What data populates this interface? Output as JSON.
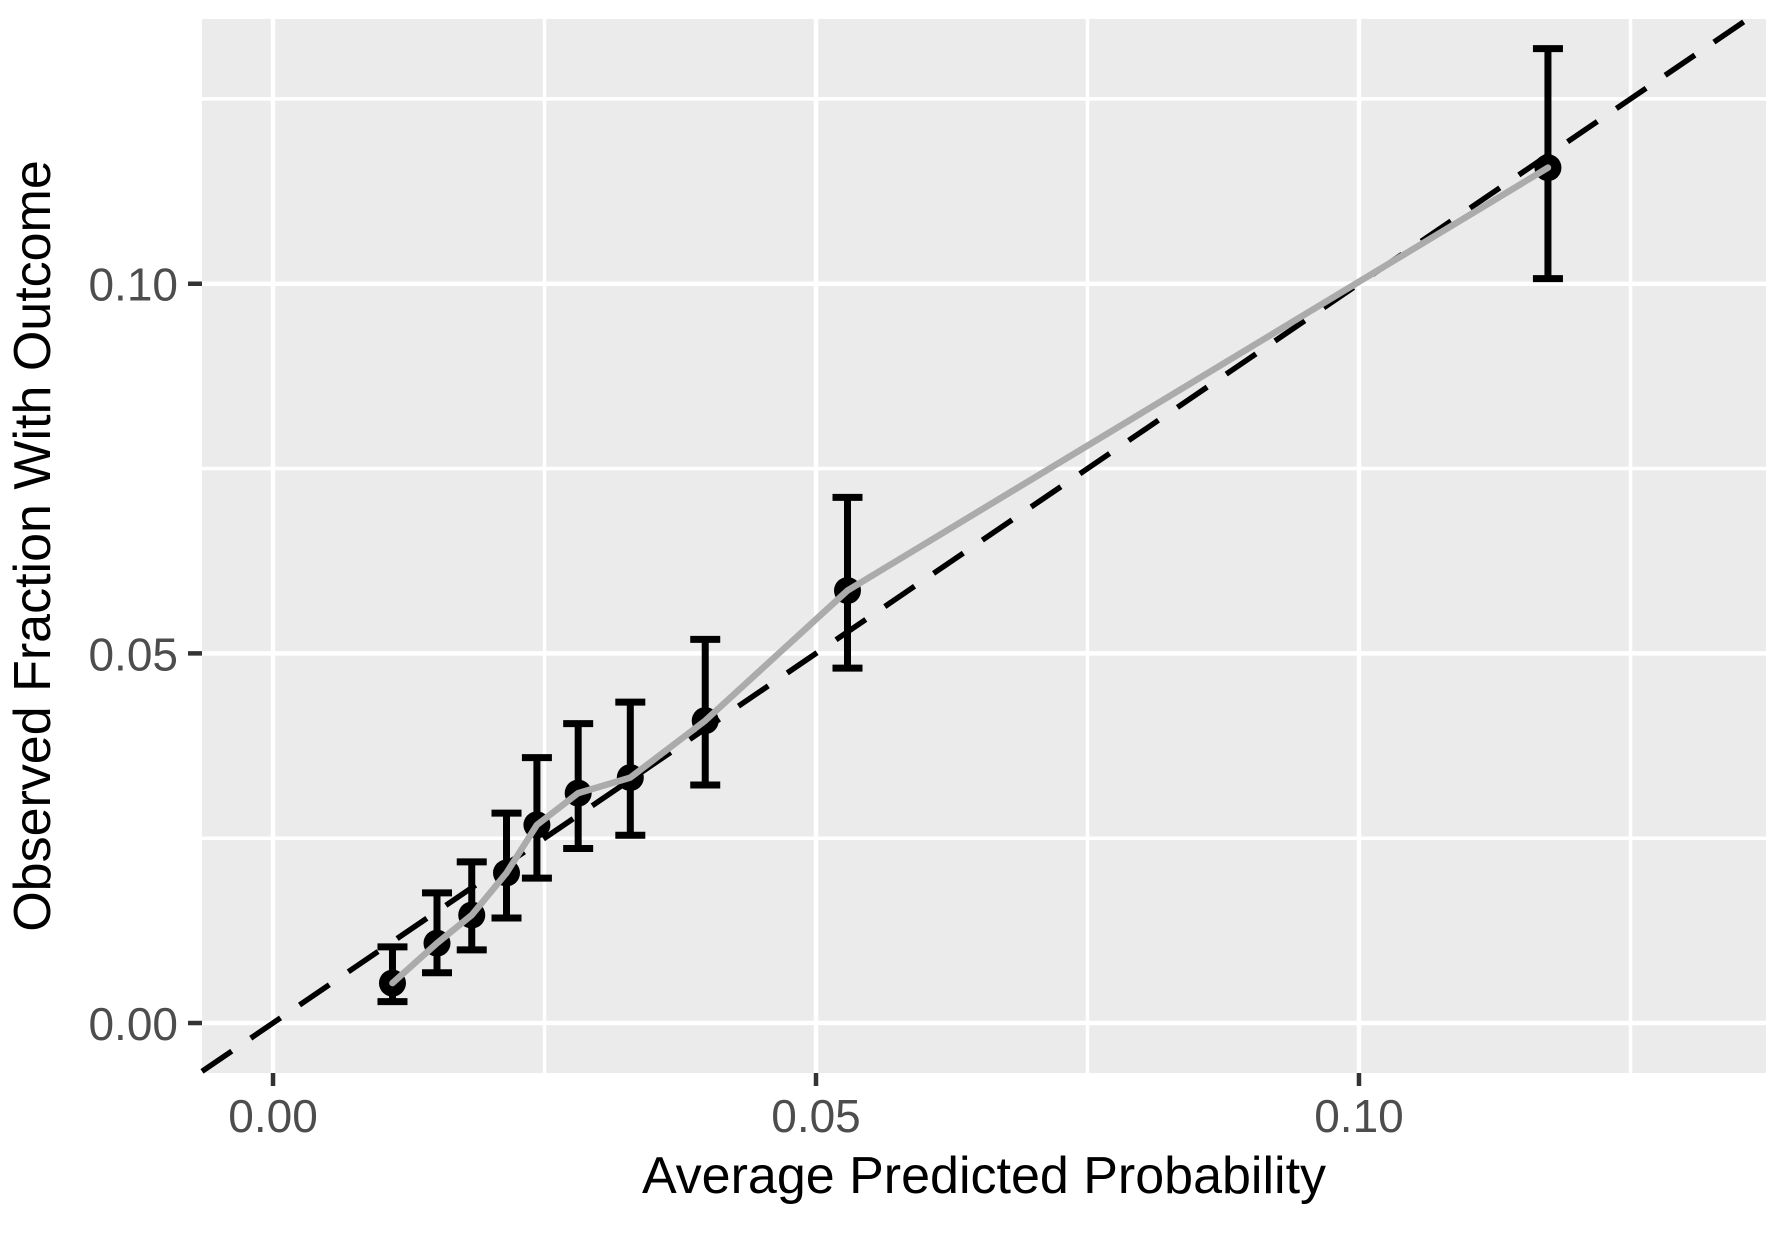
{
  "chart_data": {
    "type": "scatter",
    "title": "",
    "xlabel": "Average Predicted Probability",
    "ylabel": "Observed Fraction With Outcome",
    "legend": "none",
    "grid": "on",
    "xlim": [
      -0.00654,
      0.13748
    ],
    "ylim": [
      -0.00676,
      0.13581
    ],
    "x_axis": {
      "tick_values": [
        0.0,
        0.05,
        0.1
      ],
      "tick_labels": [
        "0.00",
        "0.05",
        "0.10"
      ],
      "minor_tick_values": [
        0.025,
        0.075,
        0.125
      ]
    },
    "y_axis": {
      "tick_values": [
        0.0,
        0.05,
        0.1
      ],
      "tick_labels": [
        "0.00",
        "0.05",
        "0.10"
      ],
      "minor_tick_values": [
        0.025,
        0.075,
        0.125
      ]
    },
    "identity_line": {
      "slope": 1,
      "intercept": 0,
      "style": "dashed",
      "color": "#000000"
    },
    "series": [
      {
        "name": "calibration-curve",
        "marker": "filled-circle",
        "line_color": "#ababab",
        "point_color": "#000000",
        "points": [
          {
            "x": 0.011,
            "y": 0.0054,
            "ci_low": 0.0029,
            "ci_high": 0.0103
          },
          {
            "x": 0.0151,
            "y": 0.0108,
            "ci_low": 0.0068,
            "ci_high": 0.0176
          },
          {
            "x": 0.0183,
            "y": 0.0146,
            "ci_low": 0.0099,
            "ci_high": 0.0218
          },
          {
            "x": 0.0215,
            "y": 0.0203,
            "ci_low": 0.0142,
            "ci_high": 0.0284
          },
          {
            "x": 0.0243,
            "y": 0.0268,
            "ci_low": 0.0196,
            "ci_high": 0.0359
          },
          {
            "x": 0.0281,
            "y": 0.0311,
            "ci_low": 0.0236,
            "ci_high": 0.0405
          },
          {
            "x": 0.0329,
            "y": 0.0332,
            "ci_low": 0.0254,
            "ci_high": 0.0434
          },
          {
            "x": 0.0398,
            "y": 0.0409,
            "ci_low": 0.0322,
            "ci_high": 0.0519
          },
          {
            "x": 0.0529,
            "y": 0.0585,
            "ci_low": 0.048,
            "ci_high": 0.0711
          },
          {
            "x": 0.1174,
            "y": 0.1157,
            "ci_low": 0.1007,
            "ci_high": 0.1318
          }
        ]
      }
    ],
    "colors": {
      "panel_background": "#ebebeb",
      "gridline": "#ffffff",
      "tick_mark": "#333333",
      "tick_label": "#4d4d4d",
      "axis_title": "#000000",
      "curve_line": "#ababab",
      "point": "#000000",
      "error_bar": "#000000",
      "identity_line": "#000000",
      "outer_background": "#ffffff"
    }
  }
}
